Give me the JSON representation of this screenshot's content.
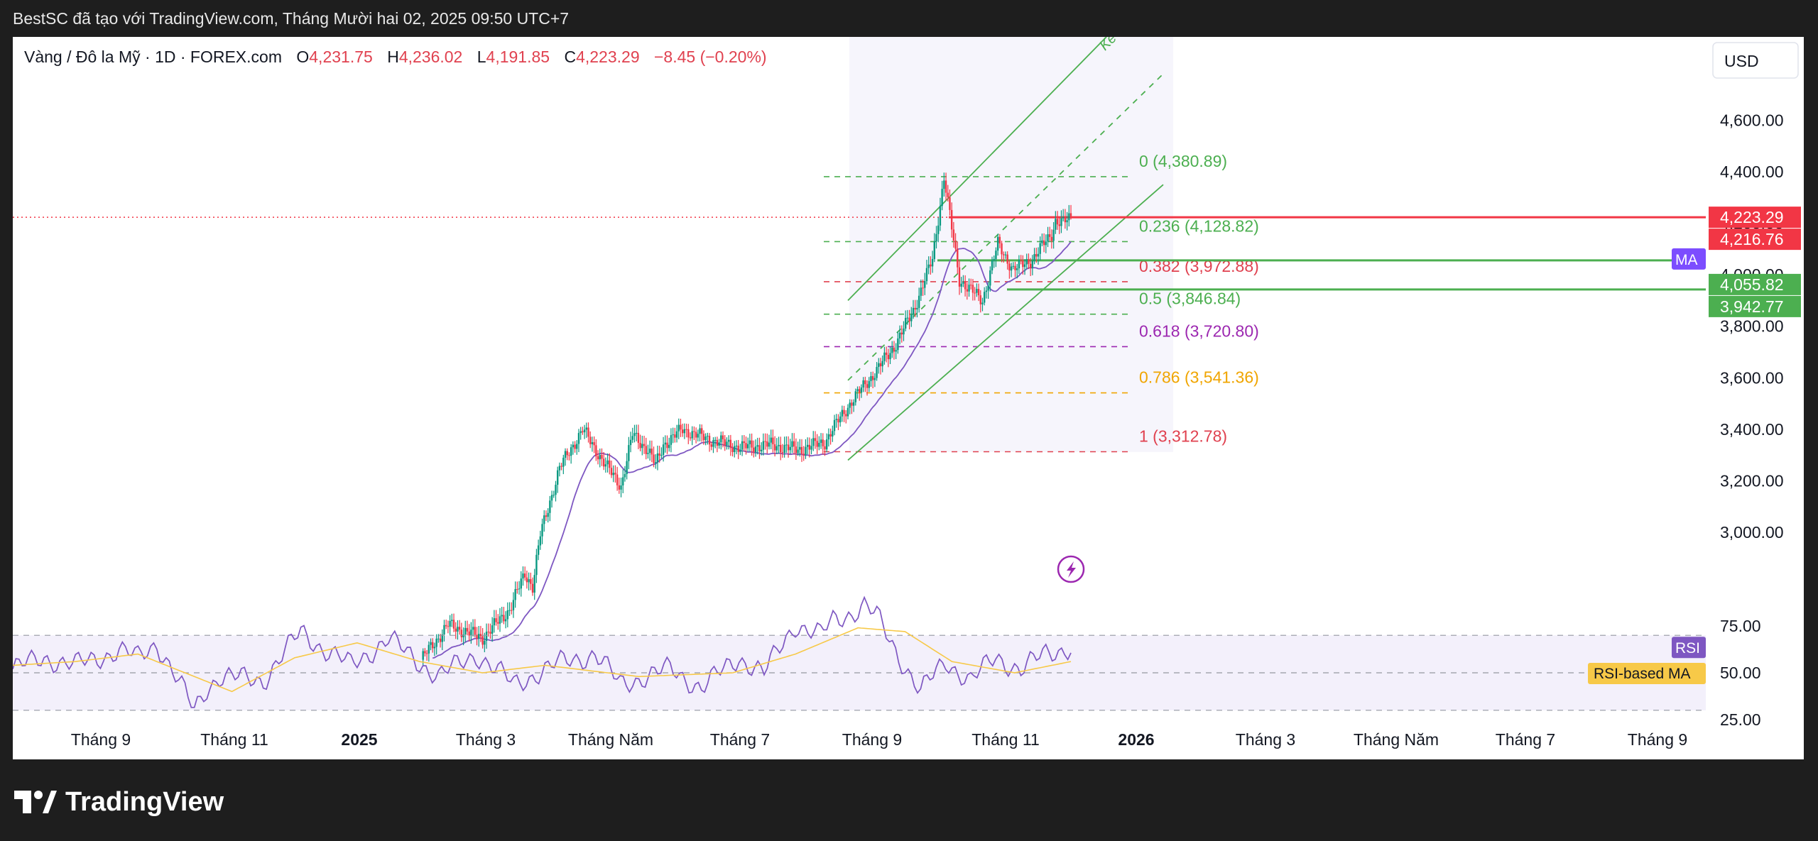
{
  "header": {
    "attribution": "BestSC đã tạo với TradingView.com, Tháng Mười hai 02, 2025 09:50 UTC+7"
  },
  "legend": {
    "symbol": "Vàng / Đô la Mỹ · 1D · FOREX.com",
    "o_label": "O",
    "o_value": "4,231.75",
    "h_label": "H",
    "h_value": "4,236.02",
    "l_label": "L",
    "l_value": "4,191.85",
    "c_label": "C",
    "c_value": "4,223.29",
    "change": "−8.45 (−0.20%)"
  },
  "currency_button": "USD",
  "channel_label": "Ke",
  "price_tags": {
    "last_price": "4,223.29",
    "last_price_2": "4,216.76",
    "ma_label": "MA",
    "ma_value_1": "4,055.82",
    "ma_value_2": "3,942.77"
  },
  "rsi_tags": {
    "rsi": "RSI",
    "rsi_ma": "RSI-based MA"
  },
  "footer": {
    "brand": "TradingView"
  },
  "colors": {
    "up": "#089981",
    "down": "#f23645",
    "ma": "#7e57c2",
    "rsi": "#7e57c2",
    "rsi_ma": "#f7c948",
    "channel": "#4caf50",
    "fib_green": "#4caf50",
    "fib_red": "#e0414f",
    "fib_purple": "#9c27b0",
    "fib_orange": "#f0a500"
  },
  "chart_data": [
    {
      "type": "candlestick",
      "title": "Vàng / Đô la Mỹ · 1D · FOREX.com",
      "y_axis": {
        "ticks": [
          "3,000.00",
          "3,200.00",
          "3,400.00",
          "3,600.00",
          "3,800.00",
          "4,000.00",
          "4,200.00",
          "4,400.00",
          "4,600.00"
        ],
        "ylim": [
          2800,
          4700
        ]
      },
      "x_axis": {
        "ticks": [
          "Tháng 9",
          "Tháng 11",
          "2025",
          "Tháng 3",
          "Tháng Năm",
          "Tháng 7",
          "Tháng 9",
          "Tháng 11",
          "2026",
          "Tháng 3",
          "Tháng Năm",
          "Tháng 7",
          "Tháng 9"
        ],
        "bold_ticks": [
          "2025",
          "2026"
        ]
      },
      "price_path": {
        "x_index": [
          0,
          14,
          32,
          46,
          54,
          58,
          62,
          72,
          84,
          96,
          104,
          110,
          118,
          122,
          126,
          136,
          150,
          166,
          182,
          196,
          210,
          214,
          224,
          236,
          246,
          256,
          266,
          272,
          280,
          292,
          300,
          308,
          318,
          328,
          330,
          334,
          338
        ],
        "close": [
          2505,
          2640,
          2590,
          2700,
          2840,
          2790,
          2990,
          3250,
          3400,
          3260,
          3180,
          3380,
          3320,
          3260,
          3340,
          3400,
          3360,
          3330,
          3340,
          3320,
          3350,
          3400,
          3510,
          3620,
          3720,
          3860,
          4060,
          4380,
          3980,
          3900,
          4120,
          4020,
          4060,
          4160,
          4210,
          4200,
          4223
        ]
      },
      "fibonacci": [
        {
          "level": "0",
          "price": 4380.89,
          "label": "0 (4,380.89)"
        },
        {
          "level": "0.236",
          "price": 4128.82,
          "label": "0.236 (4,128.82)"
        },
        {
          "level": "0.382",
          "price": 3972.88,
          "label": "0.382 (3,972.88)"
        },
        {
          "level": "0.5",
          "price": 3846.84,
          "label": "0.5 (3,846.84)"
        },
        {
          "level": "0.618",
          "price": 3720.8,
          "label": "0.618 (3,720.80)"
        },
        {
          "level": "0.786",
          "price": 3541.36,
          "label": "0.786 (3,541.36)"
        },
        {
          "level": "1",
          "price": 3312.78,
          "label": "1 (3,312.78)"
        }
      ],
      "horizontal_lines": [
        {
          "price": 4223.29,
          "color": "#f23645"
        },
        {
          "price": 4055.82,
          "color": "#4caf50"
        },
        {
          "price": 3942.77,
          "color": "#4caf50"
        }
      ]
    },
    {
      "type": "line",
      "title": "RSI",
      "y_axis": {
        "ticks": [
          "75.00",
          "50.00",
          "25.00"
        ],
        "ylim": [
          20,
          85
        ],
        "bands": [
          70,
          50,
          30
        ]
      },
      "series": [
        {
          "name": "RSI",
          "x_index": [
            0,
            10,
            20,
            34,
            40,
            46,
            58,
            62,
            66,
            80,
            92,
            100,
            108,
            120,
            136,
            148,
            160,
            176,
            186,
            194,
            210,
            220,
            232,
            240,
            250,
            258,
            262,
            268,
            272,
            276,
            282,
            290,
            298,
            306,
            314,
            322,
            330,
            338
          ],
          "values": [
            52,
            58,
            54,
            62,
            58,
            66,
            30,
            42,
            48,
            46,
            72,
            62,
            54,
            68,
            48,
            60,
            44,
            56,
            60,
            44,
            52,
            42,
            58,
            50,
            76,
            70,
            78,
            82,
            86,
            80,
            62,
            40,
            56,
            46,
            58,
            52,
            60,
            64
          ]
        },
        {
          "name": "RSI-based MA",
          "x_index": [
            0,
            20,
            40,
            58,
            70,
            90,
            110,
            130,
            150,
            170,
            200,
            230,
            250,
            270,
            285,
            300,
            320,
            338
          ],
          "values": [
            54,
            56,
            60,
            48,
            40,
            58,
            66,
            56,
            50,
            54,
            48,
            50,
            60,
            74,
            72,
            56,
            50,
            56
          ]
        }
      ]
    }
  ]
}
